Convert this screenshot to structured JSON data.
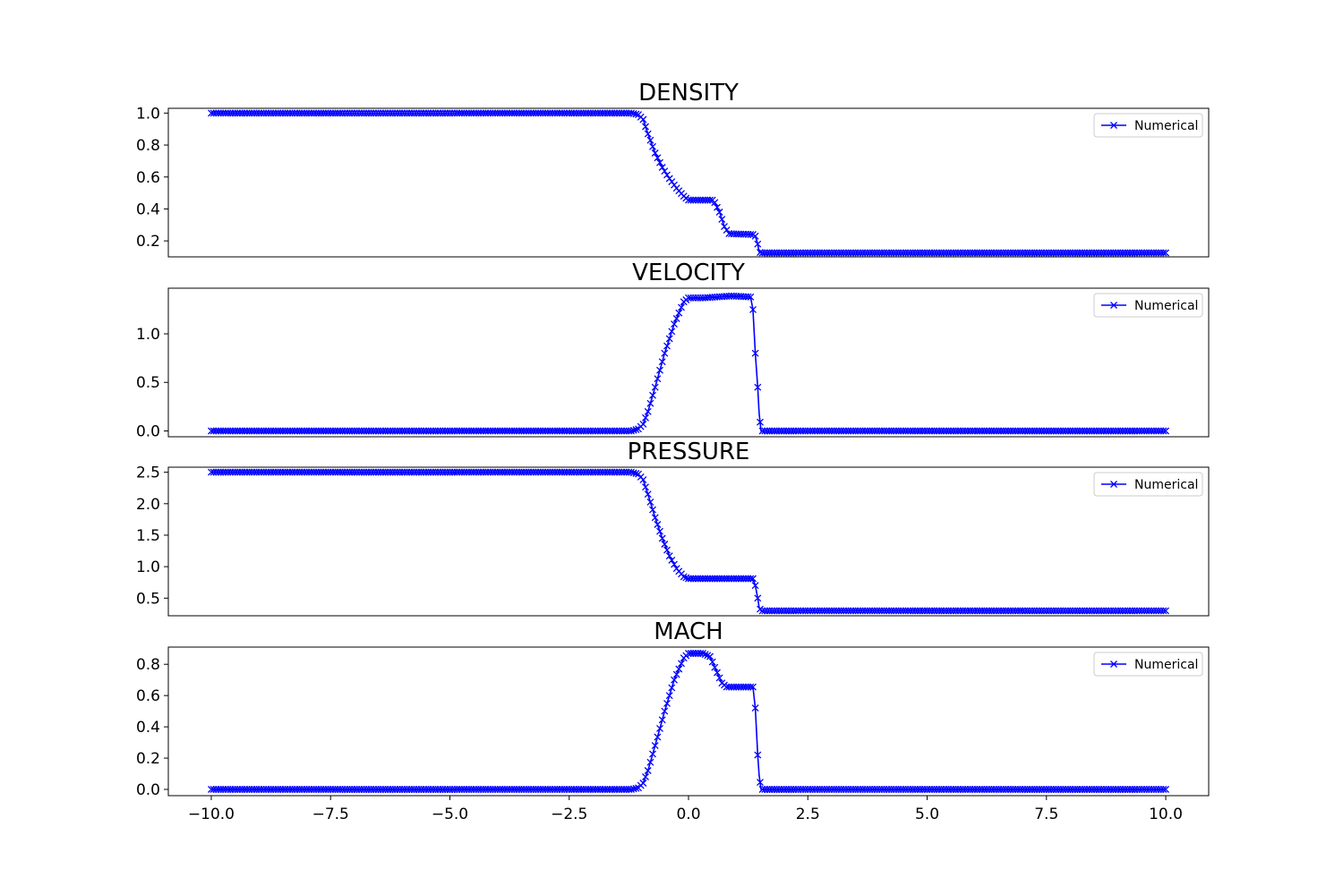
{
  "chart_data": [
    {
      "type": "line",
      "title": "DENSITY",
      "ylim": [
        0.1,
        1.03
      ],
      "yticks": [
        "1.0",
        "0.8",
        "0.6",
        "0.4",
        "0.2"
      ],
      "ytick_values": [
        1.0,
        0.8,
        0.6,
        0.4,
        0.2
      ],
      "xlim": [
        -10.9,
        10.9
      ],
      "show_xticks": false,
      "grid": false,
      "legend": "upper right",
      "series": [
        {
          "name": "Numerical",
          "color": "#0000ff",
          "marker": "x",
          "marker_spacing": 0.05,
          "x": [
            -10.0,
            -1.2,
            -1.05,
            -0.95,
            -0.85,
            -0.7,
            -0.55,
            -0.4,
            -0.25,
            -0.1,
            0.0,
            0.5,
            0.55,
            0.65,
            0.75,
            0.85,
            1.35,
            1.4,
            1.45,
            1.48,
            1.52,
            10.0
          ],
          "y": [
            1.0,
            1.0,
            0.99,
            0.96,
            0.87,
            0.75,
            0.66,
            0.59,
            0.53,
            0.48,
            0.455,
            0.455,
            0.44,
            0.38,
            0.29,
            0.245,
            0.24,
            0.23,
            0.18,
            0.13,
            0.125,
            0.125
          ]
        }
      ]
    },
    {
      "type": "line",
      "title": "VELOCITY",
      "ylim": [
        -0.06,
        1.47
      ],
      "yticks": [
        "1.0",
        "0.5",
        "0.0"
      ],
      "ytick_values": [
        1.0,
        0.5,
        0.0
      ],
      "xlim": [
        -10.9,
        10.9
      ],
      "show_xticks": false,
      "grid": false,
      "legend": "upper right",
      "series": [
        {
          "name": "Numerical",
          "color": "#0000ff",
          "marker": "x",
          "marker_spacing": 0.05,
          "x": [
            -10.0,
            -1.2,
            -1.05,
            -0.95,
            -0.85,
            -0.7,
            -0.5,
            -0.3,
            -0.1,
            0.0,
            0.3,
            0.6,
            0.9,
            1.3,
            1.35,
            1.4,
            1.45,
            1.48,
            1.52,
            10.0
          ],
          "y": [
            0.0,
            0.0,
            0.02,
            0.07,
            0.2,
            0.45,
            0.8,
            1.1,
            1.33,
            1.37,
            1.37,
            1.38,
            1.39,
            1.38,
            1.25,
            0.8,
            0.45,
            0.18,
            0.0,
            0.0
          ]
        }
      ]
    },
    {
      "type": "line",
      "title": "PRESSURE",
      "ylim": [
        0.22,
        2.58
      ],
      "yticks": [
        "2.5",
        "2.0",
        "1.5",
        "1.0",
        "0.5"
      ],
      "ytick_values": [
        2.5,
        2.0,
        1.5,
        1.0,
        0.5
      ],
      "xlim": [
        -10.9,
        10.9
      ],
      "show_xticks": false,
      "grid": false,
      "legend": "upper right",
      "series": [
        {
          "name": "Numerical",
          "color": "#0000ff",
          "marker": "x",
          "marker_spacing": 0.05,
          "x": [
            -10.0,
            -1.2,
            -1.05,
            -0.95,
            -0.85,
            -0.7,
            -0.55,
            -0.4,
            -0.25,
            -0.1,
            0.0,
            1.35,
            1.4,
            1.45,
            1.48,
            1.52,
            10.0
          ],
          "y": [
            2.5,
            2.5,
            2.47,
            2.38,
            2.15,
            1.78,
            1.45,
            1.17,
            0.97,
            0.84,
            0.81,
            0.81,
            0.7,
            0.5,
            0.35,
            0.3,
            0.3
          ]
        }
      ]
    },
    {
      "type": "line",
      "title": "MACH",
      "ylim": [
        -0.04,
        0.91
      ],
      "yticks": [
        "0.8",
        "0.6",
        "0.4",
        "0.2",
        "0.0"
      ],
      "ytick_values": [
        0.8,
        0.6,
        0.4,
        0.2,
        0.0
      ],
      "xlim": [
        -10.9,
        10.9
      ],
      "xticks": [
        "−10.0",
        "−7.5",
        "−5.0",
        "−2.5",
        "0.0",
        "2.5",
        "5.0",
        "7.5",
        "10.0"
      ],
      "xtick_values": [
        -10.0,
        -7.5,
        -5.0,
        -2.5,
        0.0,
        2.5,
        5.0,
        7.5,
        10.0
      ],
      "show_xticks": true,
      "grid": false,
      "legend": "upper right",
      "series": [
        {
          "name": "Numerical",
          "color": "#0000ff",
          "marker": "x",
          "marker_spacing": 0.05,
          "x": [
            -10.0,
            -1.2,
            -1.05,
            -0.95,
            -0.85,
            -0.7,
            -0.5,
            -0.3,
            -0.1,
            0.0,
            0.3,
            0.45,
            0.55,
            0.7,
            0.8,
            1.35,
            1.4,
            1.45,
            1.48,
            1.52,
            10.0
          ],
          "y": [
            0.0,
            0.0,
            0.01,
            0.04,
            0.12,
            0.28,
            0.5,
            0.7,
            0.84,
            0.87,
            0.87,
            0.85,
            0.78,
            0.68,
            0.655,
            0.655,
            0.52,
            0.22,
            0.09,
            0.0,
            0.0
          ]
        }
      ]
    }
  ]
}
